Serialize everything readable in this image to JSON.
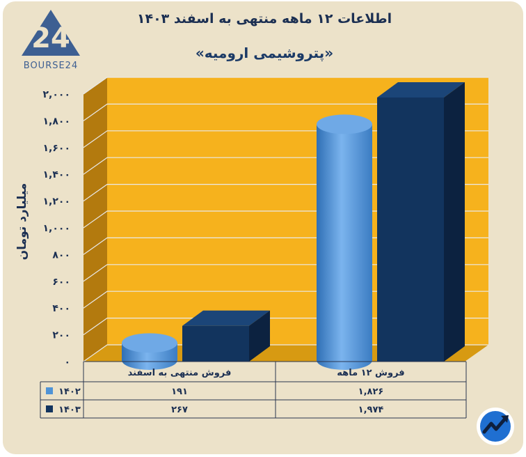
{
  "header": {
    "title": "اطلاعات ۱۲ ماهه منتهی به اسفند ۱۴۰۳",
    "subtitle": "«پتروشیمی ارومیه»"
  },
  "logo": {
    "text": "BOURSE24",
    "mark": "24",
    "icon": "triangle-logo-icon"
  },
  "badge_icon": "trend-arrow-icon",
  "colors": {
    "background": "#ece2c9",
    "wall": "#f6b21d",
    "side_wall": "#b37a0e",
    "series_1402": "#4f93d6",
    "series_1403": "#12345e"
  },
  "chart_data": {
    "type": "bar",
    "ylabel": "میلیارد تومان",
    "ylim": [
      0,
      2000
    ],
    "yticks": [
      "۰",
      "۲۰۰",
      "۴۰۰",
      "۶۰۰",
      "۸۰۰",
      "۱,۰۰۰",
      "۱,۲۰۰",
      "۱,۴۰۰",
      "۱,۶۰۰",
      "۱,۸۰۰",
      "۲,۰۰۰"
    ],
    "ytick_values": [
      0,
      200,
      400,
      600,
      800,
      1000,
      1200,
      1400,
      1600,
      1800,
      2000
    ],
    "categories": [
      "فروش منتهی به  اسفند",
      "فروش ۱۲ ماهه"
    ],
    "series": [
      {
        "name": "۱۴۰۲",
        "values": [
          191,
          1826
        ],
        "labels": [
          "۱۹۱",
          "۱,۸۲۶"
        ],
        "color": "#4f93d6",
        "shape": "cylinder"
      },
      {
        "name": "۱۴۰۳",
        "values": [
          267,
          1974
        ],
        "labels": [
          "۲۶۷",
          "۱,۹۷۴"
        ],
        "color": "#12345e",
        "shape": "box"
      }
    ],
    "grid": true,
    "legend": "table-left"
  }
}
